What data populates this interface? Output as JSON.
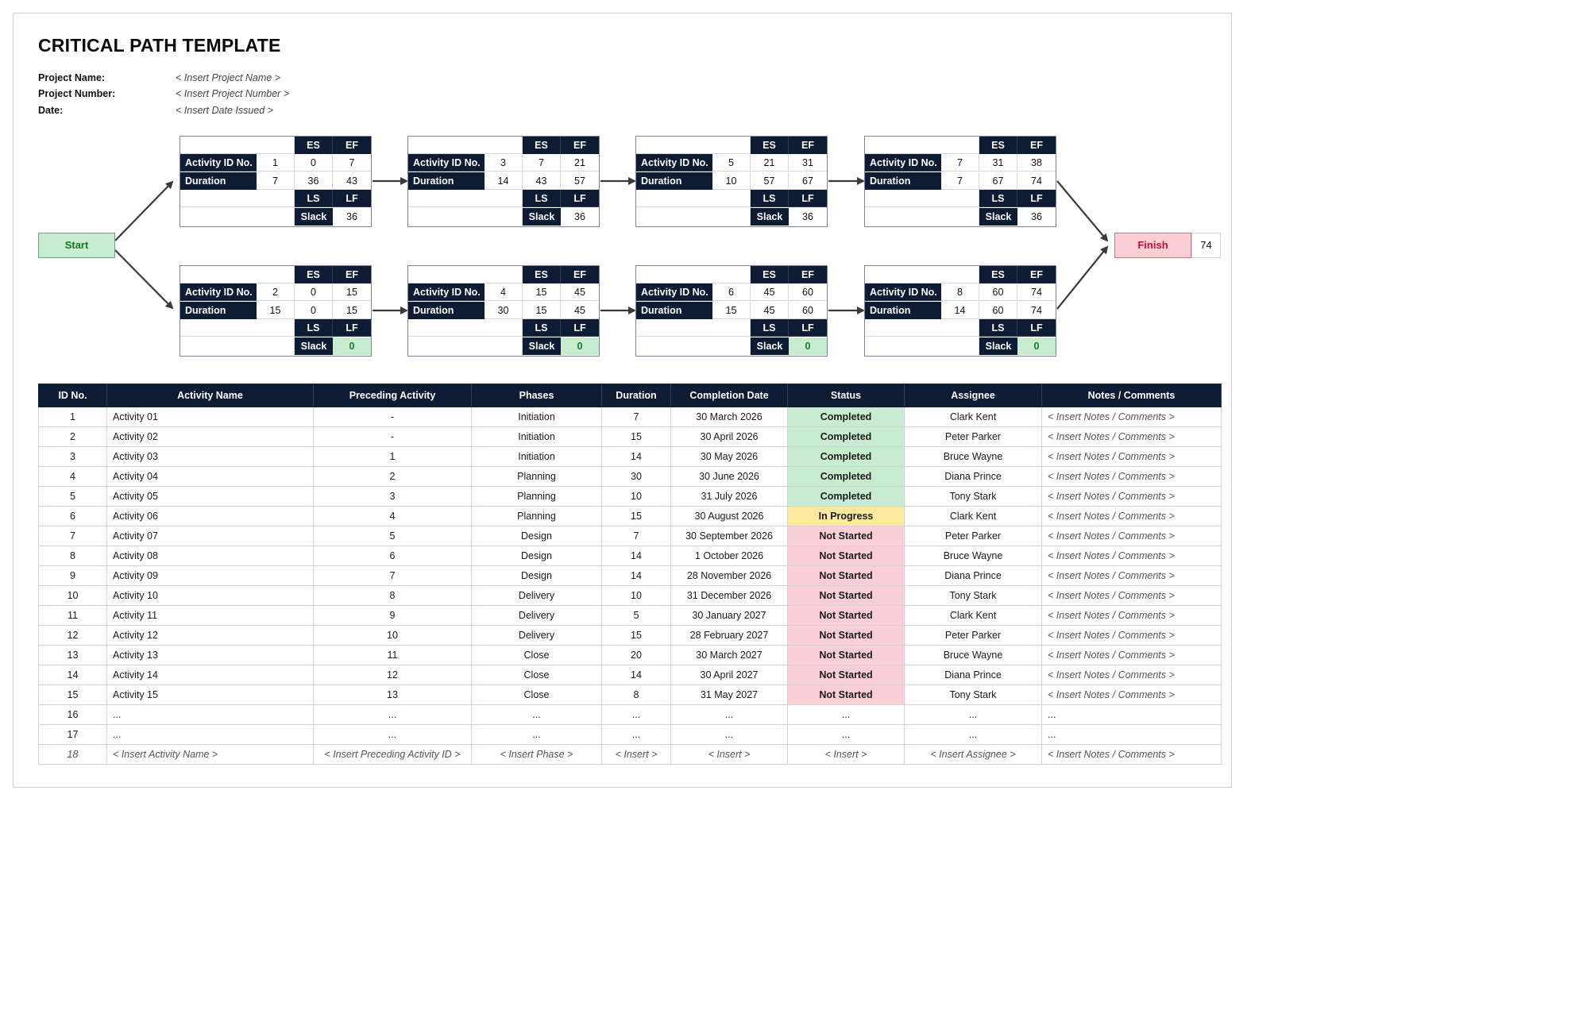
{
  "header": {
    "title": "CRITICAL PATH TEMPLATE",
    "fields": [
      {
        "label": "Project Name:",
        "value": "< Insert Project Name >"
      },
      {
        "label": "Project Number:",
        "value": "< Insert Project Number >"
      },
      {
        "label": "Date:",
        "value": "< Insert Date Issued >"
      }
    ]
  },
  "diagram": {
    "labels": {
      "es": "ES",
      "ef": "EF",
      "ls": "LS",
      "lf": "LF",
      "activity_id": "Activity ID No.",
      "duration": "Duration",
      "slack": "Slack"
    },
    "start_label": "Start",
    "finish_label": "Finish",
    "finish_value": "74",
    "nodes": [
      {
        "id": "1",
        "duration": "7",
        "es": "0",
        "ef": "7",
        "ls": "36",
        "lf": "43",
        "slack": "36"
      },
      {
        "id": "3",
        "duration": "14",
        "es": "7",
        "ef": "21",
        "ls": "43",
        "lf": "57",
        "slack": "36"
      },
      {
        "id": "5",
        "duration": "10",
        "es": "21",
        "ef": "31",
        "ls": "57",
        "lf": "67",
        "slack": "36"
      },
      {
        "id": "7",
        "duration": "7",
        "es": "31",
        "ef": "38",
        "ls": "67",
        "lf": "74",
        "slack": "36"
      },
      {
        "id": "2",
        "duration": "15",
        "es": "0",
        "ef": "15",
        "ls": "0",
        "lf": "15",
        "slack": "0"
      },
      {
        "id": "4",
        "duration": "30",
        "es": "15",
        "ef": "45",
        "ls": "15",
        "lf": "45",
        "slack": "0"
      },
      {
        "id": "6",
        "duration": "15",
        "es": "45",
        "ef": "60",
        "ls": "45",
        "lf": "60",
        "slack": "0"
      },
      {
        "id": "8",
        "duration": "14",
        "es": "60",
        "ef": "74",
        "ls": "60",
        "lf": "74",
        "slack": "0"
      }
    ]
  },
  "table": {
    "headers": [
      "ID No.",
      "Activity Name",
      "Preceding Activity",
      "Phases",
      "Duration",
      "Completion Date",
      "Status",
      "Assignee",
      "Notes / Comments"
    ],
    "rows": [
      [
        "1",
        "Activity 01",
        "-",
        "Initiation",
        "7",
        "30 March 2026",
        "Completed",
        "Clark Kent",
        "< Insert Notes / Comments >"
      ],
      [
        "2",
        "Activity 02",
        "-",
        "Initiation",
        "15",
        "30 April 2026",
        "Completed",
        "Peter Parker",
        "< Insert Notes / Comments >"
      ],
      [
        "3",
        "Activity 03",
        "1",
        "Initiation",
        "14",
        "30 May 2026",
        "Completed",
        "Bruce Wayne",
        "< Insert Notes / Comments >"
      ],
      [
        "4",
        "Activity 04",
        "2",
        "Planning",
        "30",
        "30 June 2026",
        "Completed",
        "Diana Prince",
        "< Insert Notes / Comments >"
      ],
      [
        "5",
        "Activity 05",
        "3",
        "Planning",
        "10",
        "31 July 2026",
        "Completed",
        "Tony Stark",
        "< Insert Notes / Comments >"
      ],
      [
        "6",
        "Activity 06",
        "4",
        "Planning",
        "15",
        "30 August 2026",
        "In Progress",
        "Clark Kent",
        "< Insert Notes / Comments >"
      ],
      [
        "7",
        "Activity 07",
        "5",
        "Design",
        "7",
        "30 September 2026",
        "Not Started",
        "Peter Parker",
        "< Insert Notes / Comments >"
      ],
      [
        "8",
        "Activity 08",
        "6",
        "Design",
        "14",
        "1 October 2026",
        "Not Started",
        "Bruce Wayne",
        "< Insert Notes / Comments >"
      ],
      [
        "9",
        "Activity 09",
        "7",
        "Design",
        "14",
        "28 November 2026",
        "Not Started",
        "Diana Prince",
        "< Insert Notes / Comments >"
      ],
      [
        "10",
        "Activity 10",
        "8",
        "Delivery",
        "10",
        "31 December 2026",
        "Not Started",
        "Tony Stark",
        "< Insert Notes / Comments >"
      ],
      [
        "11",
        "Activity 11",
        "9",
        "Delivery",
        "5",
        "30 January 2027",
        "Not Started",
        "Clark Kent",
        "< Insert Notes / Comments >"
      ],
      [
        "12",
        "Activity 12",
        "10",
        "Delivery",
        "15",
        "28 February 2027",
        "Not Started",
        "Peter Parker",
        "< Insert Notes / Comments >"
      ],
      [
        "13",
        "Activity 13",
        "11",
        "Close",
        "20",
        "30 March 2027",
        "Not Started",
        "Bruce Wayne",
        "< Insert Notes / Comments >"
      ],
      [
        "14",
        "Activity 14",
        "12",
        "Close",
        "14",
        "30 April 2027",
        "Not Started",
        "Diana Prince",
        "< Insert Notes / Comments >"
      ],
      [
        "15",
        "Activity 15",
        "13",
        "Close",
        "8",
        "31 May 2027",
        "Not Started",
        "Tony Stark",
        "< Insert Notes / Comments >"
      ],
      [
        "16",
        "...",
        "...",
        "...",
        "...",
        "...",
        "...",
        "...",
        "..."
      ],
      [
        "17",
        "...",
        "...",
        "...",
        "...",
        "...",
        "...",
        "...",
        "..."
      ],
      [
        "18",
        "< Insert Activity Name >",
        "< Insert Preceding Activity ID >",
        "< Insert Phase >",
        "< Insert >",
        "< Insert >",
        "< Insert >",
        "< Insert Assignee >",
        "< Insert Notes / Comments >"
      ]
    ]
  },
  "colors": {
    "navy": "#0e1b35",
    "completed_bg": "#c8eccf",
    "completed_text": "#137a2a",
    "in_progress_bg": "#fdea9e",
    "in_progress_text": "#9a6a00",
    "not_started_bg": "#f9cfd5",
    "not_started_text": "#c8102e"
  }
}
